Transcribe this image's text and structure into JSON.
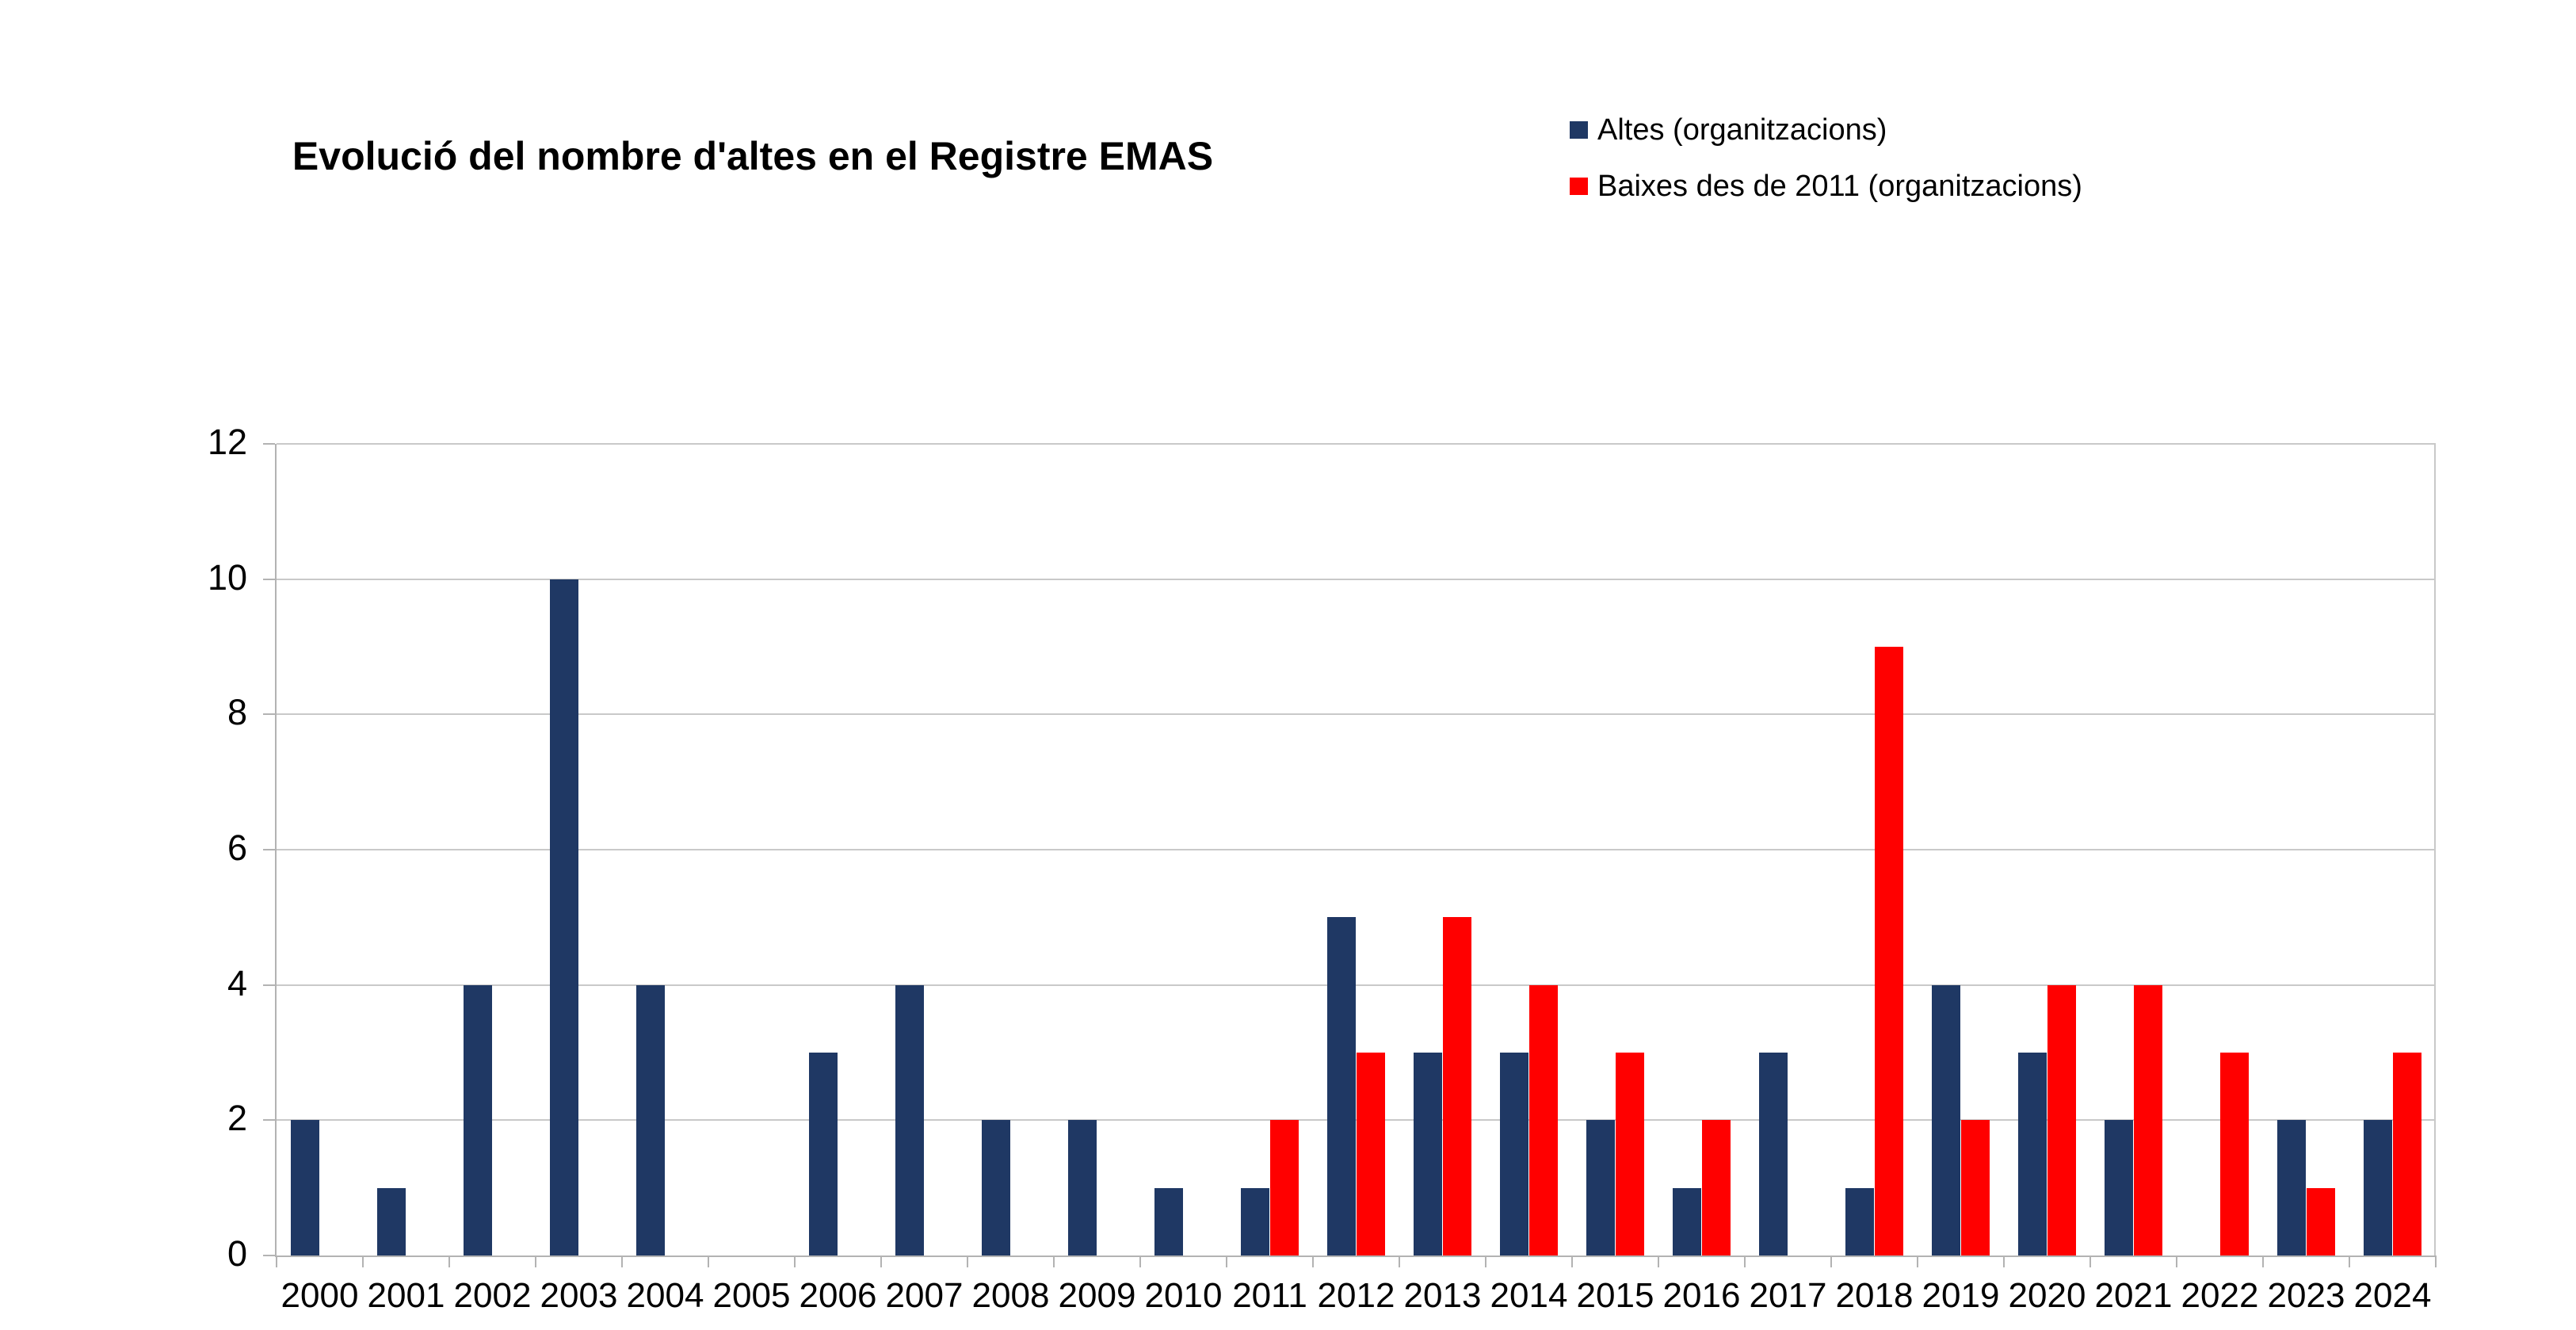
{
  "title": "Evolució del nombre d'altes en el Registre EMAS",
  "legend": {
    "items": [
      {
        "label": "Altes (organitzacions)",
        "color": "#1f3864"
      },
      {
        "label": "Baixes des de 2011 (organitzacions)",
        "color": "#ff0000"
      }
    ]
  },
  "chart_data": {
    "type": "bar",
    "title": "Evolució del nombre d'altes en el Registre EMAS",
    "categories": [
      "2000",
      "2001",
      "2002",
      "2003",
      "2004",
      "2005",
      "2006",
      "2007",
      "2008",
      "2009",
      "2010",
      "2011",
      "2012",
      "2013",
      "2014",
      "2015",
      "2016",
      "2017",
      "2018",
      "2019",
      "2020",
      "2021",
      "2022",
      "2023",
      "2024"
    ],
    "series": [
      {
        "name": "Altes (organitzacions)",
        "color": "#1f3864",
        "values": [
          2,
          1,
          4,
          10,
          4,
          0,
          3,
          4,
          2,
          2,
          1,
          1,
          5,
          3,
          3,
          2,
          1,
          3,
          1,
          4,
          3,
          2,
          0,
          2,
          2
        ]
      },
      {
        "name": "Baixes des de 2011 (organitzacions)",
        "color": "#ff0000",
        "values": [
          0,
          0,
          0,
          0,
          0,
          0,
          0,
          0,
          0,
          0,
          0,
          2,
          3,
          5,
          4,
          3,
          2,
          0,
          9,
          2,
          4,
          4,
          3,
          1,
          3
        ]
      }
    ],
    "xlabel": "",
    "ylabel": "",
    "ylim": [
      0,
      12
    ],
    "yticks": [
      0,
      2,
      4,
      6,
      8,
      10,
      12
    ],
    "grid": true,
    "legend_position": "top-right",
    "gridline_color": "#c9c9c9",
    "axis_color": "#b3b3b3",
    "background": "#ffffff"
  }
}
